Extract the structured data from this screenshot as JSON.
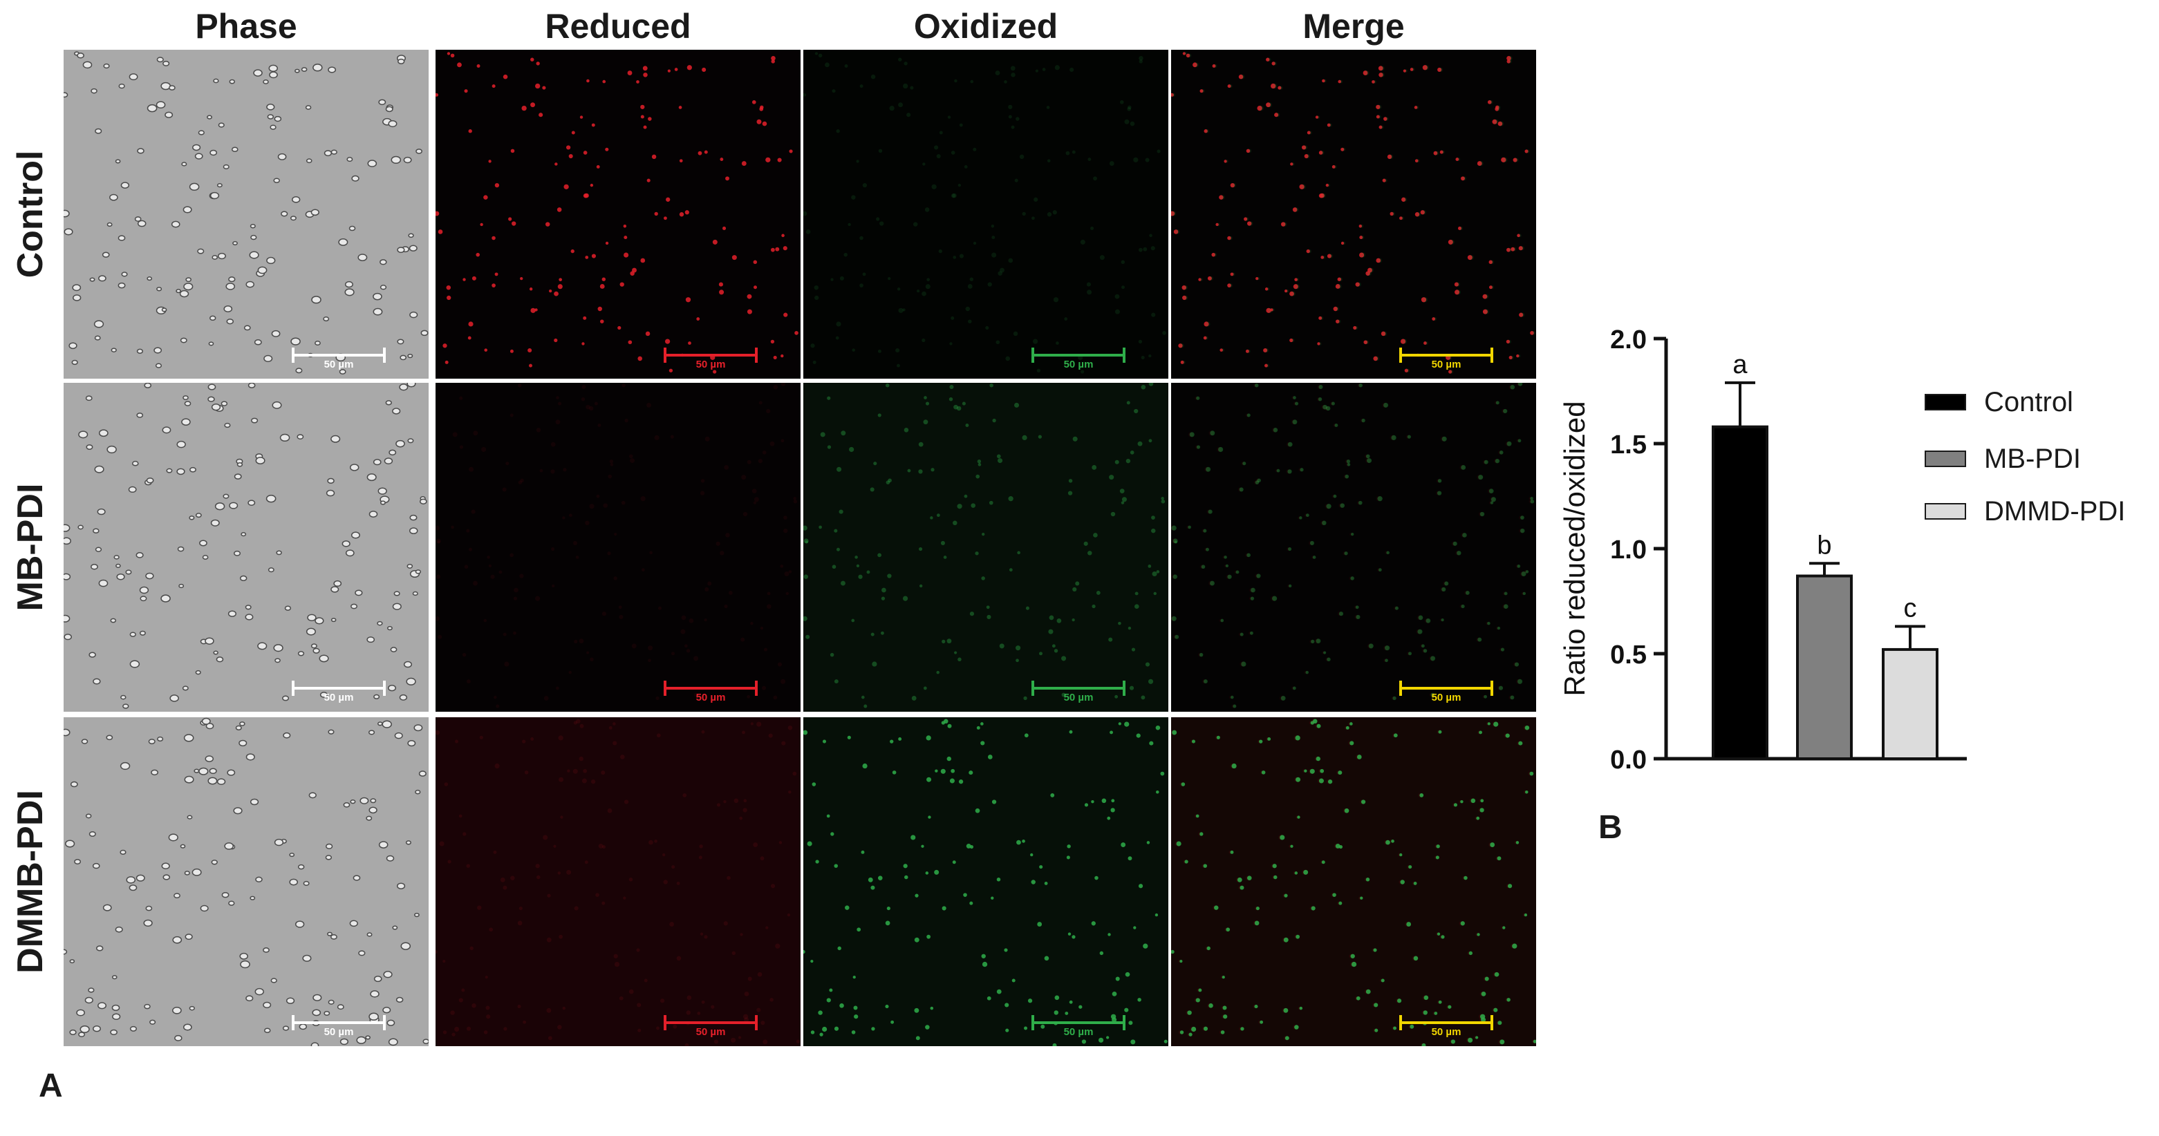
{
  "figure": {
    "column_headers": [
      "Phase",
      "Reduced",
      "Oxidized",
      "Merge"
    ],
    "row_labels": [
      "Control",
      "MB-PDI",
      "DMMB-PDI"
    ],
    "scale_bar_text": "50 µm",
    "panel_letters": {
      "a": "A",
      "b": "B"
    },
    "colors": {
      "phase_bg": "#a9a9a9",
      "reduced": "#e5202a",
      "oxidized": "#2fae4a",
      "merge_bar": "#f2d600",
      "scale_phase": "#ffffff"
    },
    "channel_intensity": {
      "Control": {
        "reduced": 1.0,
        "oxidized": 0.15
      },
      "MB-PDI": {
        "reduced": 0.08,
        "oxidized": 0.45
      },
      "DMMB-PDI": {
        "reduced": 0.12,
        "oxidized": 1.0
      }
    }
  },
  "chart_data": {
    "type": "bar",
    "categories": [
      "Control",
      "MB-PDI",
      "DMMD-PDI"
    ],
    "values": [
      1.58,
      0.87,
      0.52
    ],
    "errors": [
      0.21,
      0.06,
      0.11
    ],
    "significance_letters": [
      "a",
      "b",
      "c"
    ],
    "colors": [
      "#000000",
      "#808080",
      "#dcdcdc"
    ],
    "ylabel": "Ratio reduced/oxidized",
    "xlabel": "",
    "ylim": [
      0,
      2.0
    ],
    "yticks": [
      "0.0",
      "0.5",
      "1.0",
      "1.5",
      "2.0"
    ],
    "legend": [
      "Control",
      "MB-PDI",
      "DMMD-PDI"
    ],
    "legend_position": "right",
    "grid": false
  }
}
